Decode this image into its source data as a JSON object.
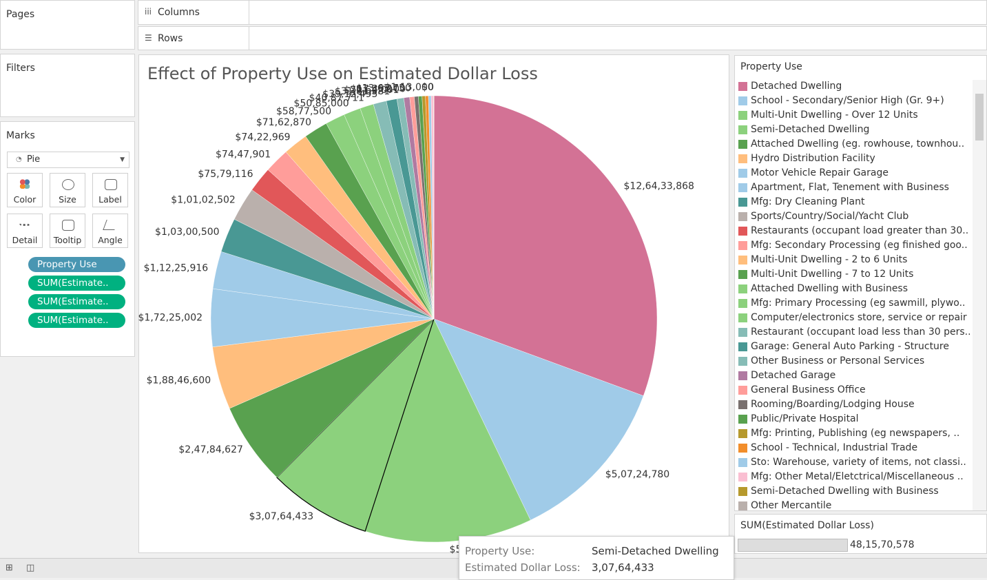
{
  "shelves": {
    "pages": "Pages",
    "columns": "Columns",
    "rows": "Rows",
    "filters": "Filters"
  },
  "marks": {
    "title": "Marks",
    "mark_type": "Pie",
    "buttons": [
      "Color",
      "Size",
      "Label",
      "Detail",
      "Tooltip",
      "Angle"
    ],
    "pills": [
      "Property Use",
      "SUM(Estimate..",
      "SUM(Estimate..",
      "SUM(Estimate.."
    ]
  },
  "legend": {
    "title": "Property Use"
  },
  "size_legend": {
    "title": "SUM(Estimated Dollar Loss)",
    "value_label": "48,15,70,578"
  },
  "tooltip": {
    "rows": [
      [
        "Property Use:",
        "Semi-Detached Dwelling"
      ],
      [
        "Estimated Dollar Loss:",
        "3,07,64,433"
      ]
    ]
  },
  "chart_data": {
    "type": "pie",
    "title": "Effect of Property Use on Estimated Dollar Loss",
    "categories": [
      "Detached Dwelling",
      "School - Secondary/Senior High (Gr. 9+)",
      "Multi-Unit Dwelling - Over 12 Units",
      "Semi-Detached Dwelling",
      "Attached Dwelling (eg. rowhouse, townhou..",
      "Hydro Distribution Facility",
      "Motor Vehicle Repair Garage",
      "Apartment, Flat, Tenement with Business",
      "Mfg: Dry Cleaning Plant",
      "Sports/Country/Social/Yacht Club",
      "Restaurants (occupant load greater than 30..",
      "Mfg: Secondary Processing (eg finished goo..",
      "Multi-Unit Dwelling - 2 to 6 Units",
      "Multi-Unit Dwelling - 7 to 12 Units",
      "Attached Dwelling with Business",
      "Mfg: Primary Processing (eg sawmill, plywo..",
      "Computer/electronics store, service or repair",
      "Restaurant (occupant load less than 30 pers..",
      "Garage:  General Auto Parking - Structure",
      "Other Business or Personal Services",
      "Detached Garage",
      "General Business Office",
      "Rooming/Boarding/Lodging House",
      "Public/Private Hospital",
      "Mfg: Printing, Publishing (eg newspapers, ..",
      "School - Technical, Industrial Trade",
      "Sto: Warehouse, variety of items, not classi..",
      "Mfg: Other Metal/Eletctrical/Miscellaneous ..",
      "Semi-Detached Dwelling with Business",
      "Other Mercantile"
    ],
    "values": [
      126433868,
      50724780,
      50042638,
      30764433,
      24784627,
      18846600,
      17225002,
      11225916,
      10300500,
      10102502,
      7579116,
      7447901,
      7422969,
      7162870,
      5877500,
      5085000,
      4087711,
      3912495,
      3181581,
      2064001,
      1739100,
      1363750,
      1200000,
      1100000,
      1000000,
      900000,
      800000,
      700000,
      113000,
      0
    ],
    "value_labels": [
      "$12,64,33,868",
      "$5,07,24,780",
      "$5,00,42,638",
      "$3,07,64,433",
      "$2,47,84,627",
      "$1,88,46,600",
      "$1,72,25,002",
      "$1,12,25,916",
      "$1,03,00,500",
      "$1,01,02,502",
      "$75,79,116",
      "$74,47,901",
      "$74,22,969",
      "$71,62,870",
      "$58,77,500",
      "$50,85,000",
      "$40,87,711",
      "$39,12,495",
      "$31,81,581",
      "$20,64,001",
      "$17,39,100",
      "$13,63,750",
      null,
      null,
      null,
      null,
      null,
      null,
      "$1,13,000",
      "$0"
    ],
    "colors": [
      "#d37295",
      "#a0cbe8",
      "#8cd17d",
      "#8cd17d",
      "#59a14f",
      "#ffbe7d",
      "#a0cbe8",
      "#a0cbe8",
      "#499894",
      "#bab0ac",
      "#e15759",
      "#ff9d9a",
      "#ffbe7d",
      "#59a14f",
      "#8cd17d",
      "#8cd17d",
      "#8cd17d",
      "#86bcb6",
      "#499894",
      "#86bcb6",
      "#b07aa1",
      "#ff9d9a",
      "#79706e",
      "#59a14f",
      "#b6992d",
      "#f28e2b",
      "#a0cbe8",
      "#fabfd2",
      "#b6992d",
      "#bab0ac"
    ]
  }
}
